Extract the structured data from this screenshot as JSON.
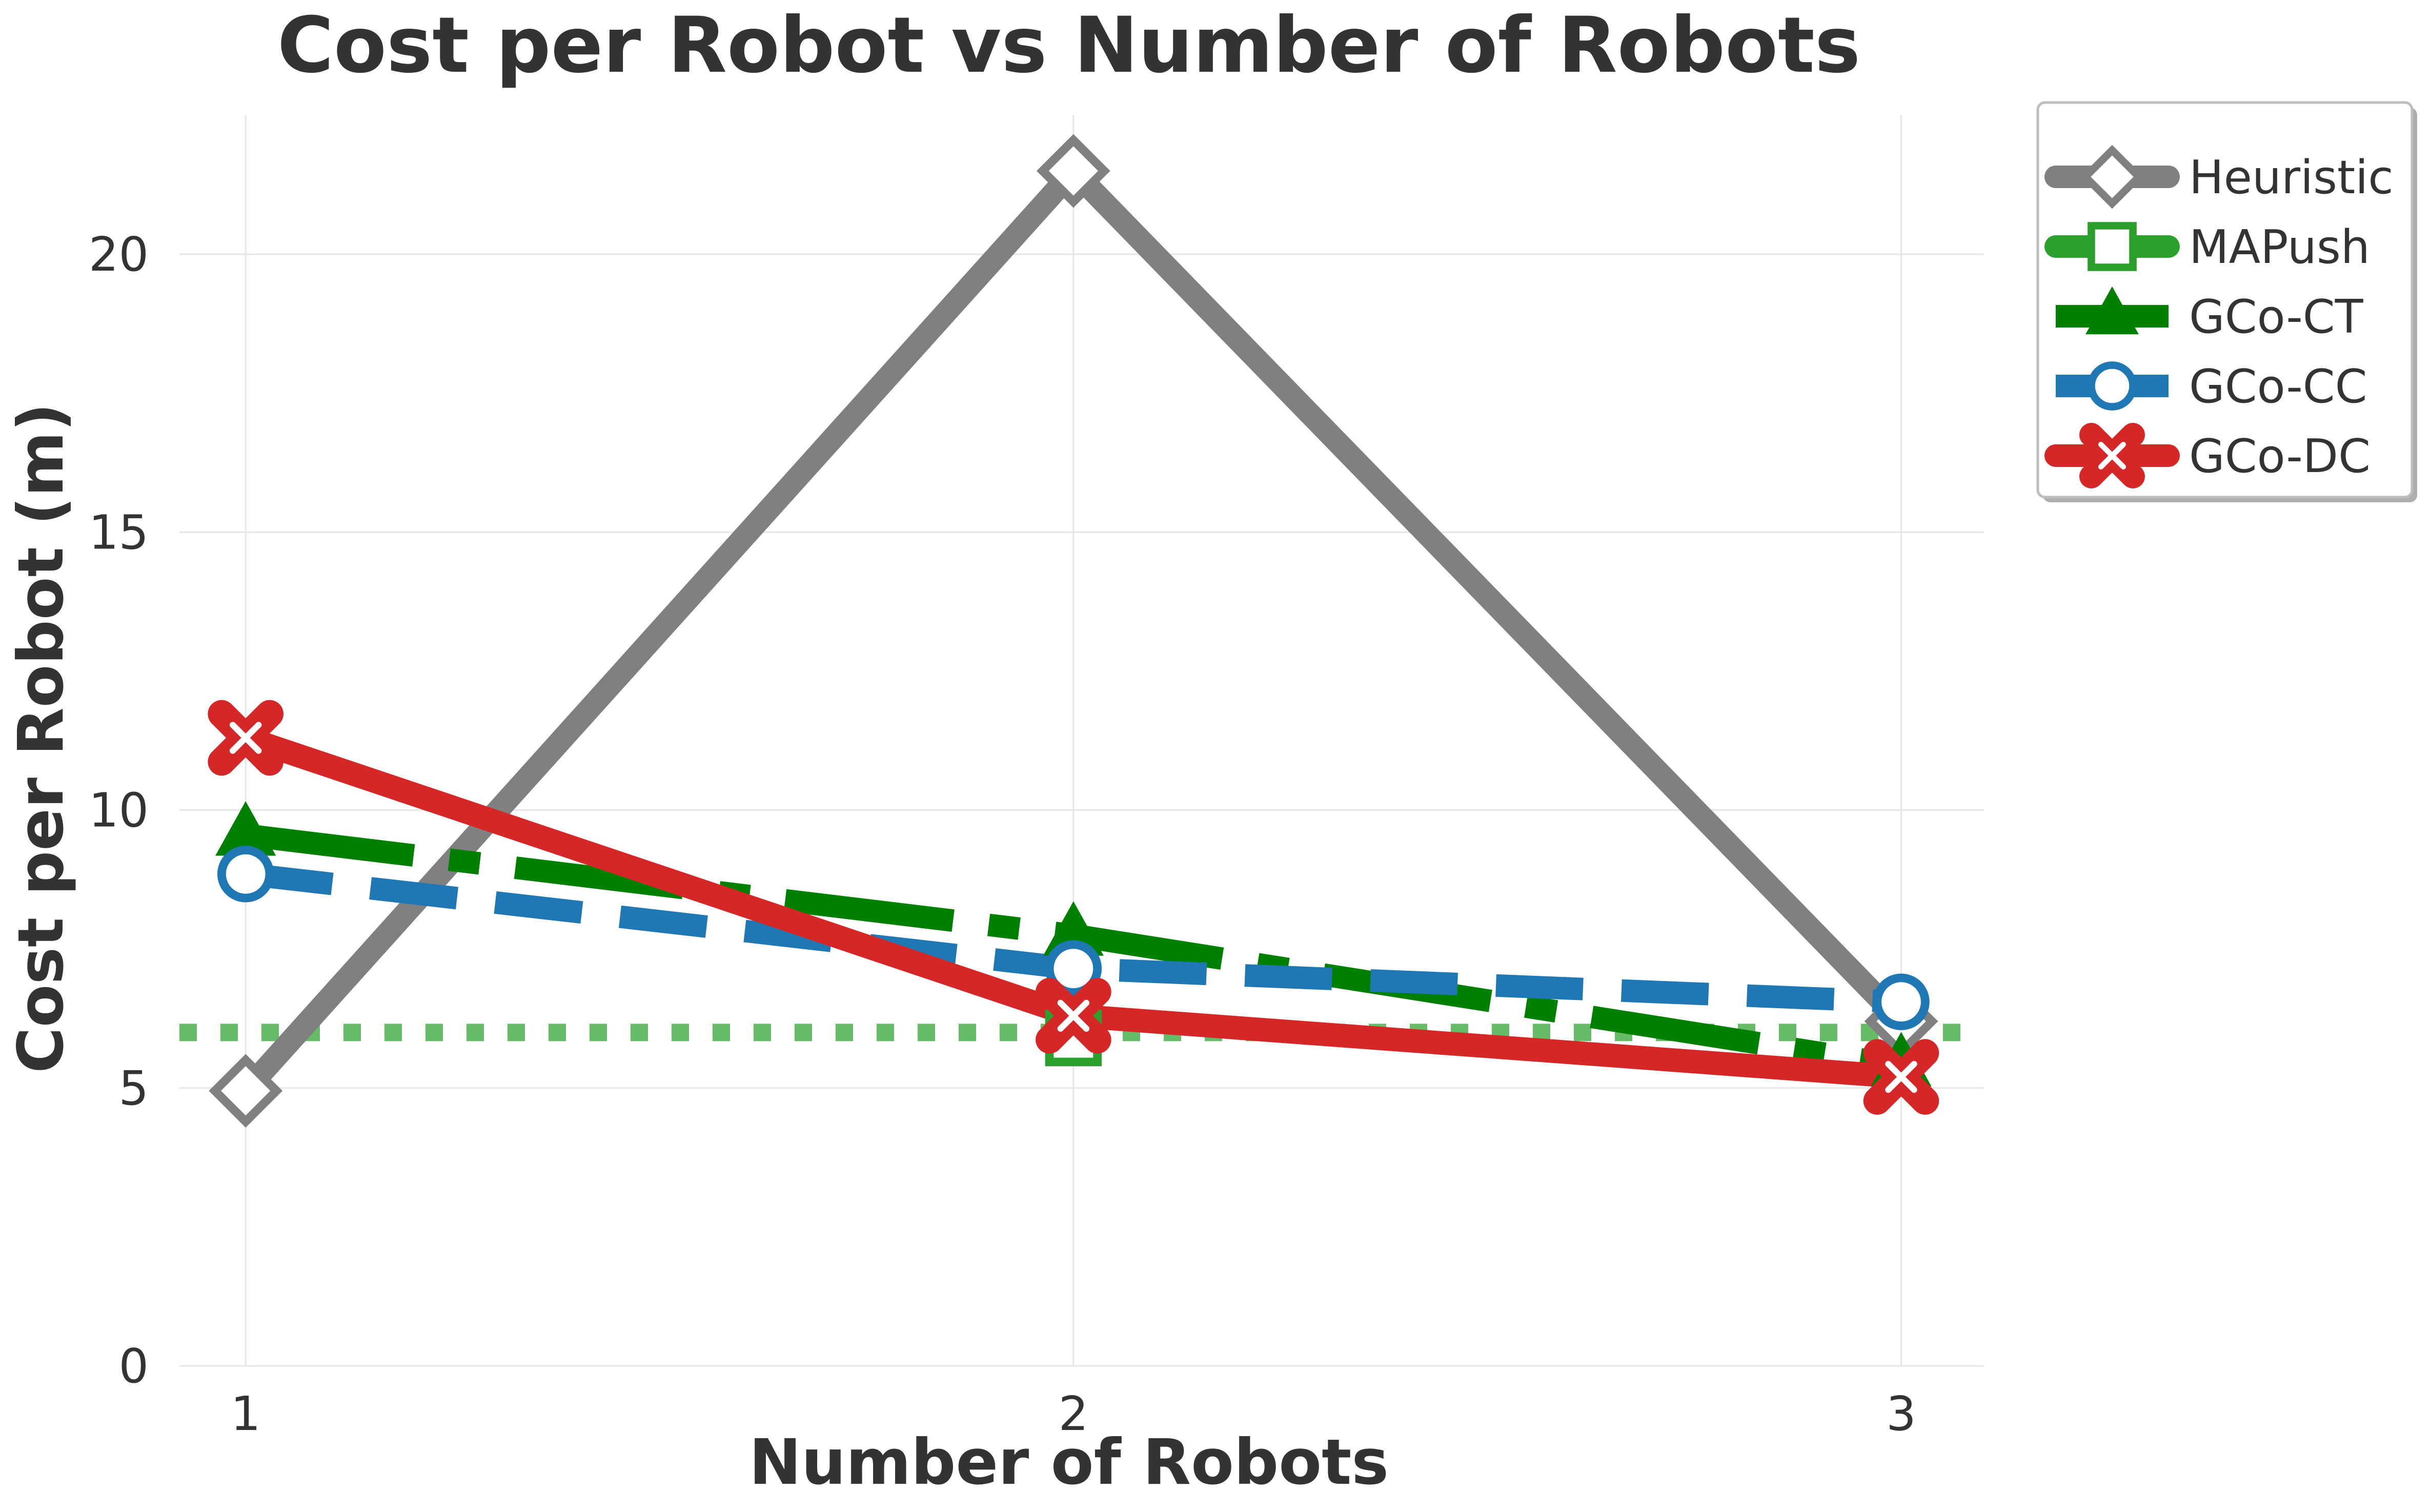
{
  "chart_data": {
    "type": "line",
    "title": "Cost per Robot vs Number of Robots",
    "xlabel": "Number of Robots",
    "ylabel": "Cost per Robot (m)",
    "x": [
      1,
      2,
      3
    ],
    "x_tick_labels": [
      "1",
      "2",
      "3"
    ],
    "xlim": [
      0.92,
      3.1
    ],
    "ylim": [
      0,
      22.5
    ],
    "y_ticks": [
      0,
      5,
      10,
      15,
      20
    ],
    "y_tick_labels": [
      "0",
      "5",
      "10",
      "15",
      "20"
    ],
    "grid": true,
    "legend_placement": "outside top-right",
    "series": [
      {
        "name": "Heuristic",
        "values": [
          4.95,
          21.5,
          6.2
        ],
        "color": "#808080",
        "line_style": "solid",
        "marker": "diamond"
      },
      {
        "name": "MAPush",
        "values": [
          null,
          5.9,
          null
        ],
        "color": "#2ca02c",
        "line_style": "solid",
        "marker": "square"
      },
      {
        "name": "GCo-CT",
        "values": [
          9.55,
          7.75,
          5.4
        ],
        "color": "#008000",
        "line_style": "dashdot",
        "marker": "triangle"
      },
      {
        "name": "GCo-CC",
        "values": [
          8.85,
          7.15,
          6.55
        ],
        "color": "#1f77b4",
        "line_style": "dashed",
        "marker": "circle"
      },
      {
        "name": "GCo-DC",
        "values": [
          11.3,
          6.3,
          5.2
        ],
        "color": "#d62728",
        "line_style": "solid",
        "marker": "x"
      }
    ],
    "reference_lines": [
      {
        "orientation": "horizontal",
        "y": 6.0,
        "color": "#66bb66",
        "line_style": "dotted"
      }
    ]
  }
}
